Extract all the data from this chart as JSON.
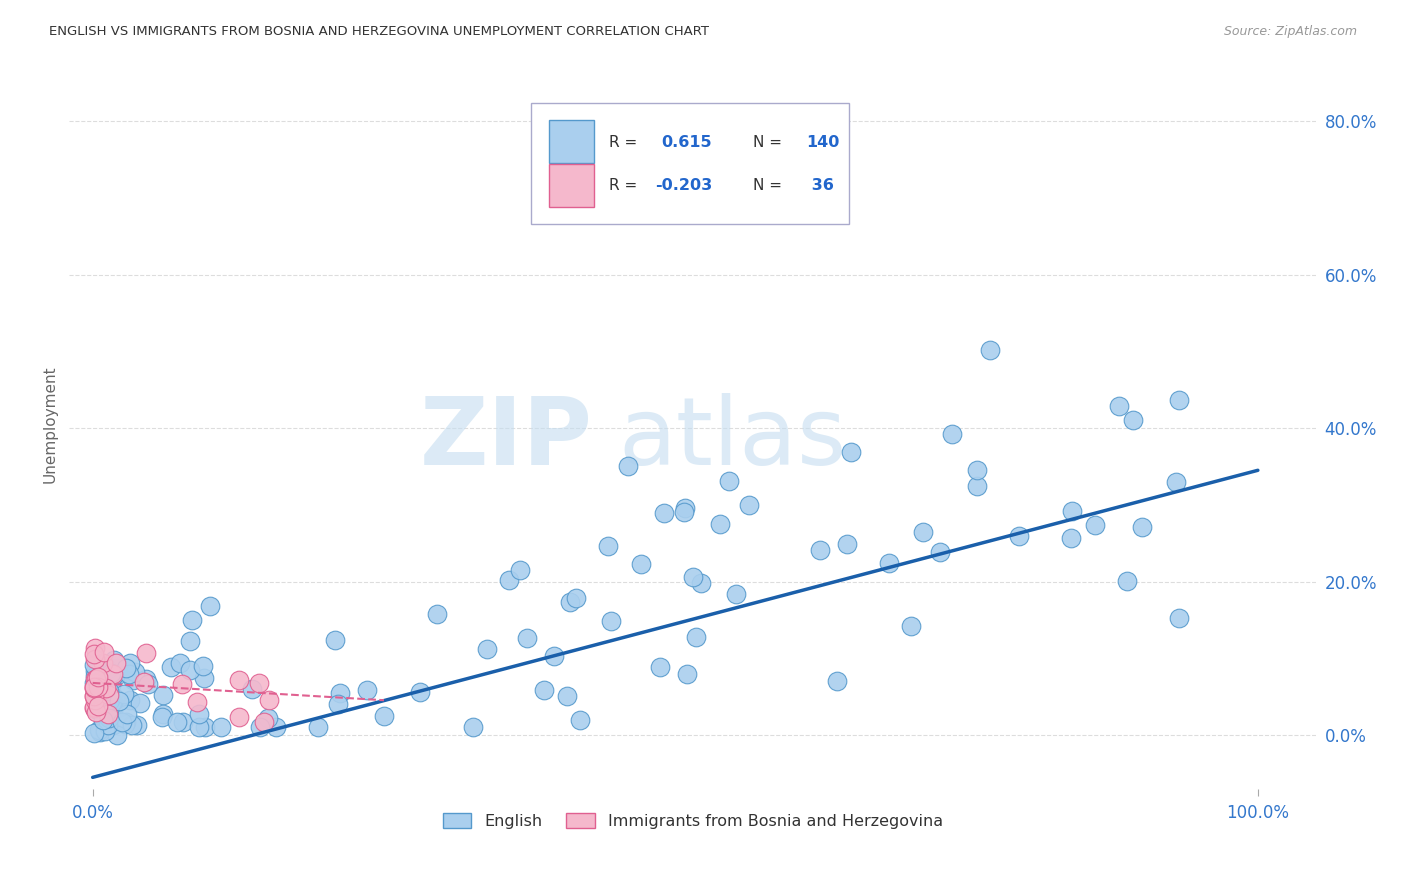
{
  "title": "ENGLISH VS IMMIGRANTS FROM BOSNIA AND HERZEGOVINA UNEMPLOYMENT CORRELATION CHART",
  "source": "Source: ZipAtlas.com",
  "ylabel": "Unemployment",
  "english_color": "#aacfee",
  "english_edge_color": "#5599cc",
  "immigrant_color": "#f5b8cc",
  "immigrant_edge_color": "#e06090",
  "regression_line_color_english": "#1a5faa",
  "regression_line_color_immigrant": "#e06090",
  "legend_label_english": "English",
  "legend_label_immigrant": "Immigrants from Bosnia and Herzegovina",
  "watermark_zip": "ZIP",
  "watermark_atlas": "atlas",
  "grid_color": "#dddddd",
  "background_color": "#ffffff",
  "ylim_low": -0.07,
  "ylim_high": 0.88,
  "xlim_low": -0.02,
  "xlim_high": 1.05,
  "eng_slope": 0.4,
  "eng_intercept": -0.055,
  "imm_slope": -0.09,
  "imm_intercept": 0.068,
  "imm_line_xmax": 0.25
}
